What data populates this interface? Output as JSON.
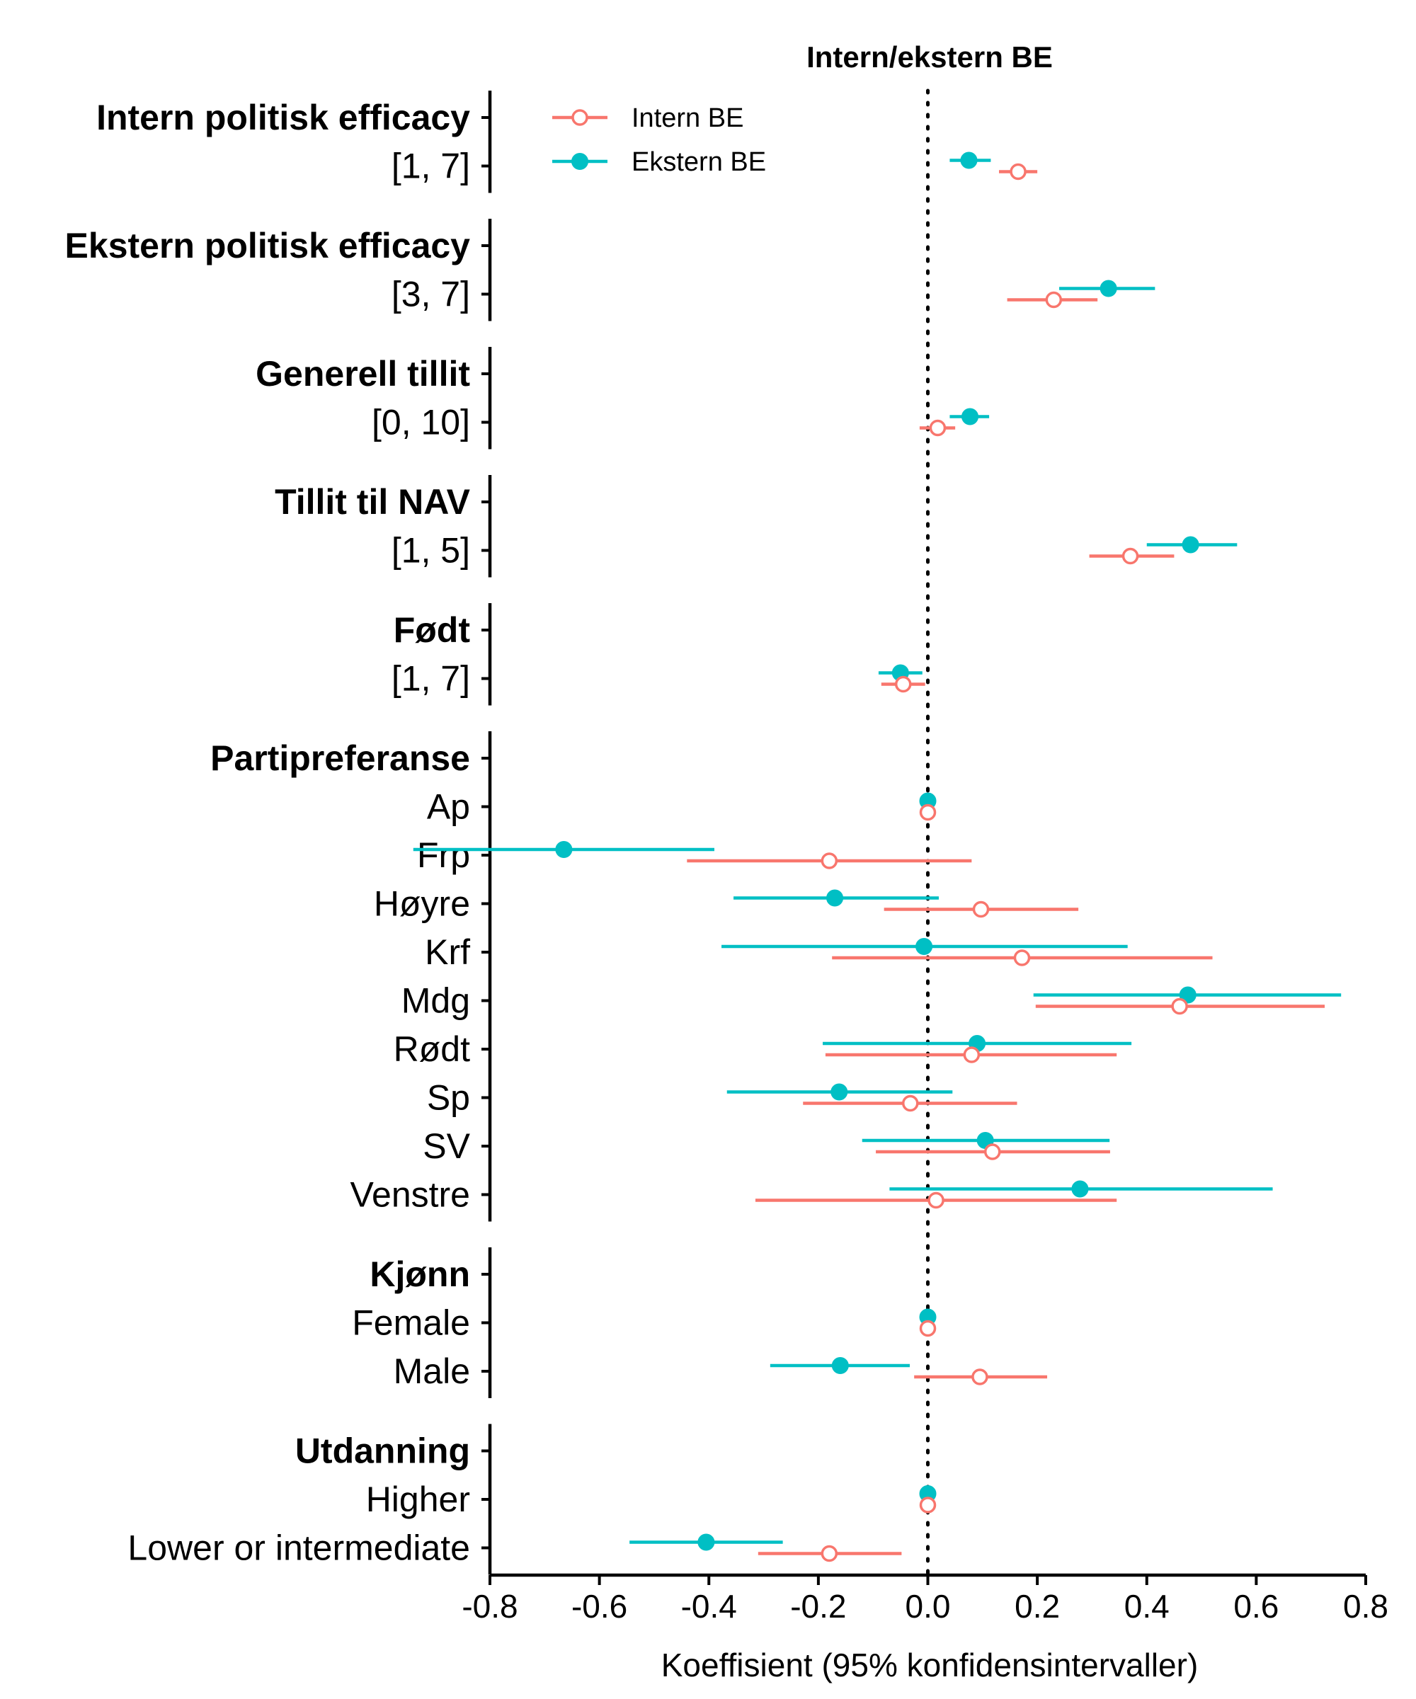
{
  "chart_data": {
    "type": "forest",
    "title": "Intern/ekstern BE",
    "xlabel": "Koeffisient (95% konfidensintervaller)",
    "xlim": [
      -0.8,
      0.8
    ],
    "xticks": [
      "-0.8",
      "-0.6",
      "-0.4",
      "-0.2",
      "0.0",
      "0.2",
      "0.4",
      "0.6",
      "0.8"
    ],
    "reference_line": 0,
    "legend_position": "top-left",
    "series": [
      {
        "name": "Intern BE",
        "color": "#F8766D",
        "marker": "open-circle"
      },
      {
        "name": "Ekstern BE",
        "color": "#00BFC4",
        "marker": "filled-circle"
      }
    ],
    "groups": [
      {
        "label": "Intern politisk efficacy",
        "rows": [
          {
            "label": "[1, 7]",
            "intern": {
              "est": 0.165,
              "lo": 0.13,
              "hi": 0.2
            },
            "ekstern": {
              "est": 0.075,
              "lo": 0.04,
              "hi": 0.115
            }
          }
        ]
      },
      {
        "label": "Ekstern politisk efficacy",
        "rows": [
          {
            "label": "[3, 7]",
            "intern": {
              "est": 0.23,
              "lo": 0.145,
              "hi": 0.31
            },
            "ekstern": {
              "est": 0.33,
              "lo": 0.24,
              "hi": 0.415
            }
          }
        ]
      },
      {
        "label": "Generell tillit",
        "rows": [
          {
            "label": "[0, 10]",
            "intern": {
              "est": 0.018,
              "lo": -0.015,
              "hi": 0.05
            },
            "ekstern": {
              "est": 0.077,
              "lo": 0.04,
              "hi": 0.112
            }
          }
        ]
      },
      {
        "label": "Tillit til NAV",
        "rows": [
          {
            "label": "[1, 5]",
            "intern": {
              "est": 0.37,
              "lo": 0.295,
              "hi": 0.45
            },
            "ekstern": {
              "est": 0.48,
              "lo": 0.4,
              "hi": 0.565
            }
          }
        ]
      },
      {
        "label": "Født",
        "rows": [
          {
            "label": "[1, 7]",
            "intern": {
              "est": -0.045,
              "lo": -0.085,
              "hi": -0.005
            },
            "ekstern": {
              "est": -0.05,
              "lo": -0.09,
              "hi": -0.01
            }
          }
        ]
      },
      {
        "label": "Partipreferanse",
        "rows": [
          {
            "label": "Ap",
            "intern": {
              "est": 0.0,
              "lo": 0.0,
              "hi": 0.0
            },
            "ekstern": {
              "est": 0.0,
              "lo": 0.0,
              "hi": 0.0
            }
          },
          {
            "label": "Frp",
            "intern": {
              "est": -0.18,
              "lo": -0.44,
              "hi": 0.08
            },
            "ekstern": {
              "est": -0.665,
              "lo": -0.94,
              "hi": -0.39
            }
          },
          {
            "label": "Høyre",
            "intern": {
              "est": 0.097,
              "lo": -0.08,
              "hi": 0.275
            },
            "ekstern": {
              "est": -0.17,
              "lo": -0.355,
              "hi": 0.02
            }
          },
          {
            "label": "Krf",
            "intern": {
              "est": 0.172,
              "lo": -0.175,
              "hi": 0.52
            },
            "ekstern": {
              "est": -0.007,
              "lo": -0.377,
              "hi": 0.365
            }
          },
          {
            "label": "Mdg",
            "intern": {
              "est": 0.46,
              "lo": 0.197,
              "hi": 0.725
            },
            "ekstern": {
              "est": 0.475,
              "lo": 0.193,
              "hi": 0.755
            }
          },
          {
            "label": "Rødt",
            "intern": {
              "est": 0.08,
              "lo": -0.187,
              "hi": 0.345
            },
            "ekstern": {
              "est": 0.09,
              "lo": -0.192,
              "hi": 0.372
            }
          },
          {
            "label": "Sp",
            "intern": {
              "est": -0.032,
              "lo": -0.228,
              "hi": 0.163
            },
            "ekstern": {
              "est": -0.162,
              "lo": -0.367,
              "hi": 0.045
            }
          },
          {
            "label": "SV",
            "intern": {
              "est": 0.118,
              "lo": -0.095,
              "hi": 0.333
            },
            "ekstern": {
              "est": 0.105,
              "lo": -0.12,
              "hi": 0.332
            }
          },
          {
            "label": "Venstre",
            "intern": {
              "est": 0.015,
              "lo": -0.315,
              "hi": 0.345
            },
            "ekstern": {
              "est": 0.278,
              "lo": -0.07,
              "hi": 0.63
            }
          }
        ]
      },
      {
        "label": "Kjønn",
        "rows": [
          {
            "label": "Female",
            "intern": {
              "est": 0.0,
              "lo": 0.0,
              "hi": 0.0
            },
            "ekstern": {
              "est": 0.0,
              "lo": 0.0,
              "hi": 0.0
            }
          },
          {
            "label": "Male",
            "intern": {
              "est": 0.095,
              "lo": -0.025,
              "hi": 0.218
            },
            "ekstern": {
              "est": -0.16,
              "lo": -0.288,
              "hi": -0.033
            }
          }
        ]
      },
      {
        "label": "Utdanning",
        "rows": [
          {
            "label": "Higher",
            "intern": {
              "est": 0.0,
              "lo": 0.0,
              "hi": 0.0
            },
            "ekstern": {
              "est": 0.0,
              "lo": 0.0,
              "hi": 0.0
            }
          },
          {
            "label": "Lower or intermediate",
            "intern": {
              "est": -0.18,
              "lo": -0.31,
              "hi": -0.048
            },
            "ekstern": {
              "est": -0.405,
              "lo": -0.545,
              "hi": -0.265
            }
          }
        ]
      }
    ]
  }
}
